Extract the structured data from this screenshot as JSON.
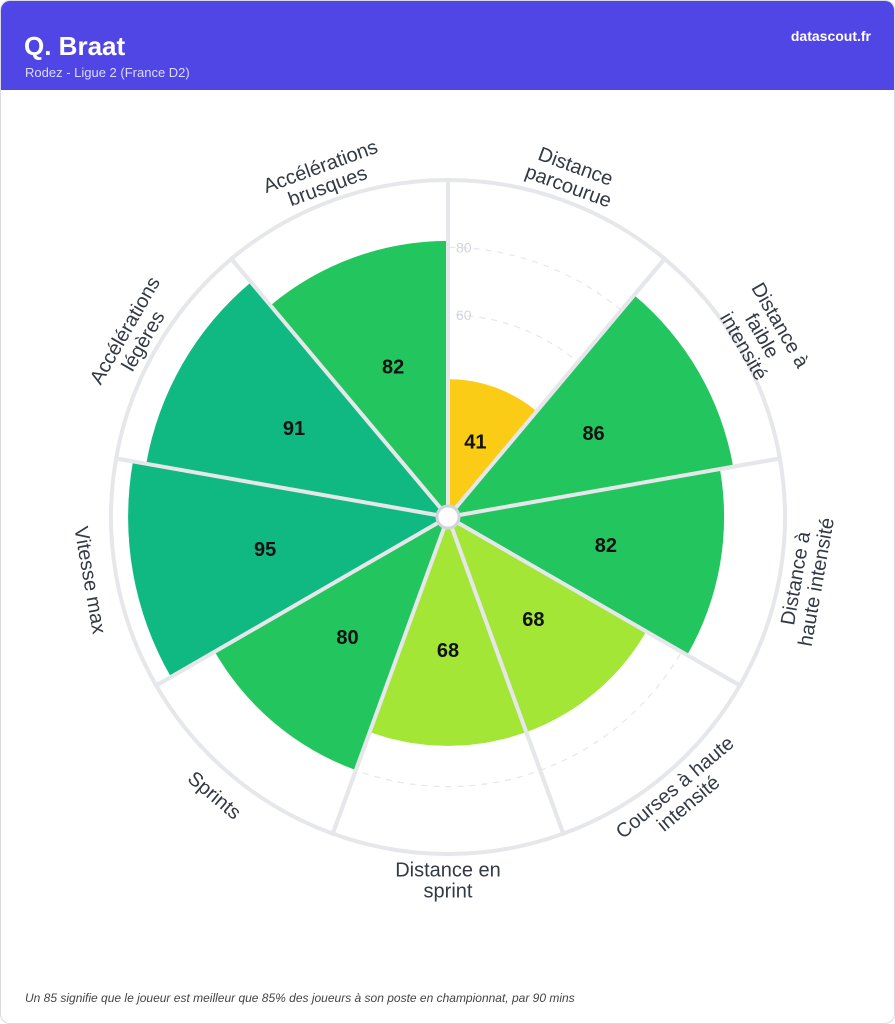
{
  "header": {
    "player_name": "Q. Braat",
    "team_league": "Rodez - Ligue 2 (France D2)",
    "brand": "datascout.fr"
  },
  "footnote": "Un 85 signifie que le joueur est meilleur que 85% des joueurs à son poste en championnat, par 90 mins",
  "chart_data": {
    "type": "polar-bar",
    "title": "",
    "categories": [
      [
        "Distance",
        "parcourue"
      ],
      [
        "Distance à",
        "faible",
        "intensité"
      ],
      [
        "Distance à",
        "haute intensité"
      ],
      [
        "Courses à haute",
        "intensité"
      ],
      [
        "Distance en",
        "sprint"
      ],
      [
        "Sprints"
      ],
      [
        "Vitesse max"
      ],
      [
        "Accélérations",
        "légères"
      ],
      [
        "Accélérations",
        "brusques"
      ]
    ],
    "values": [
      41,
      86,
      82,
      68,
      68,
      80,
      95,
      91,
      82
    ],
    "colors": [
      "#facc15",
      "#22c55e",
      "#22c55e",
      "#a3e635",
      "#a3e635",
      "#22c55e",
      "#10b981",
      "#10b981",
      "#22c55e"
    ],
    "rlim": [
      0,
      100
    ],
    "ticks": [
      20,
      40,
      60,
      80
    ],
    "tick_labels": [
      "",
      "",
      "60",
      "80"
    ]
  }
}
